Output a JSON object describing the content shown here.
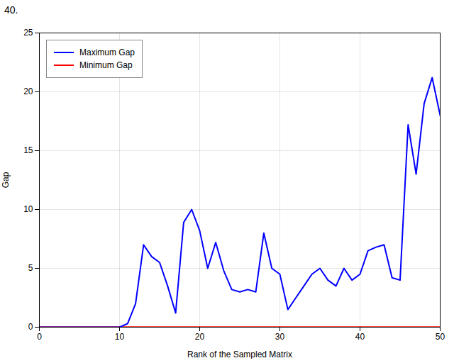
{
  "chart_data": {
    "type": "line",
    "title": "40.",
    "x": [
      0,
      1,
      2,
      3,
      4,
      5,
      6,
      7,
      8,
      9,
      10,
      11,
      12,
      13,
      14,
      15,
      16,
      17,
      18,
      19,
      20,
      21,
      22,
      23,
      24,
      25,
      26,
      27,
      28,
      29,
      30,
      31,
      32,
      33,
      34,
      35,
      36,
      37,
      38,
      39,
      40,
      41,
      42,
      43,
      44,
      45,
      46,
      47,
      48,
      49,
      50
    ],
    "series": [
      {
        "name": "Maximum Gap",
        "color": "#0000FF",
        "values": [
          0,
          0,
          0,
          0,
          0,
          0,
          0,
          0,
          0,
          0,
          0,
          0.3,
          2.0,
          7.0,
          6.0,
          5.5,
          3.5,
          1.2,
          8.9,
          10.0,
          8.2,
          5.0,
          7.2,
          4.8,
          3.2,
          3.0,
          3.2,
          3.0,
          8.0,
          5.0,
          4.5,
          1.5,
          2.5,
          3.5,
          4.5,
          5.0,
          4.0,
          3.5,
          5.0,
          4.0,
          4.5,
          6.5,
          6.8,
          7.0,
          4.2,
          4.0,
          17.2,
          13.0,
          19.0,
          21.2,
          18.0
        ]
      },
      {
        "name": "Minimum Gap",
        "color": "#FF0000",
        "values": [
          0,
          0,
          0,
          0,
          0,
          0,
          0,
          0,
          0,
          0,
          0,
          0,
          0,
          0,
          0,
          0,
          0,
          0,
          0,
          0,
          0,
          0,
          0,
          0,
          0,
          0,
          0,
          0,
          0,
          0,
          0,
          0,
          0,
          0,
          0,
          0,
          0,
          0,
          0,
          0,
          0,
          0,
          0,
          0,
          0,
          0,
          0,
          0,
          0,
          0,
          0
        ]
      }
    ],
    "xlabel": "Rank of the Sampled Matrix",
    "ylabel": "Gap",
    "xlim": [
      0,
      50
    ],
    "ylim": [
      0,
      25
    ],
    "xticks": [
      0,
      10,
      20,
      30,
      40,
      50
    ],
    "yticks": [
      0,
      5,
      10,
      15,
      20,
      25
    ],
    "grid": true,
    "legend": "upper left"
  }
}
